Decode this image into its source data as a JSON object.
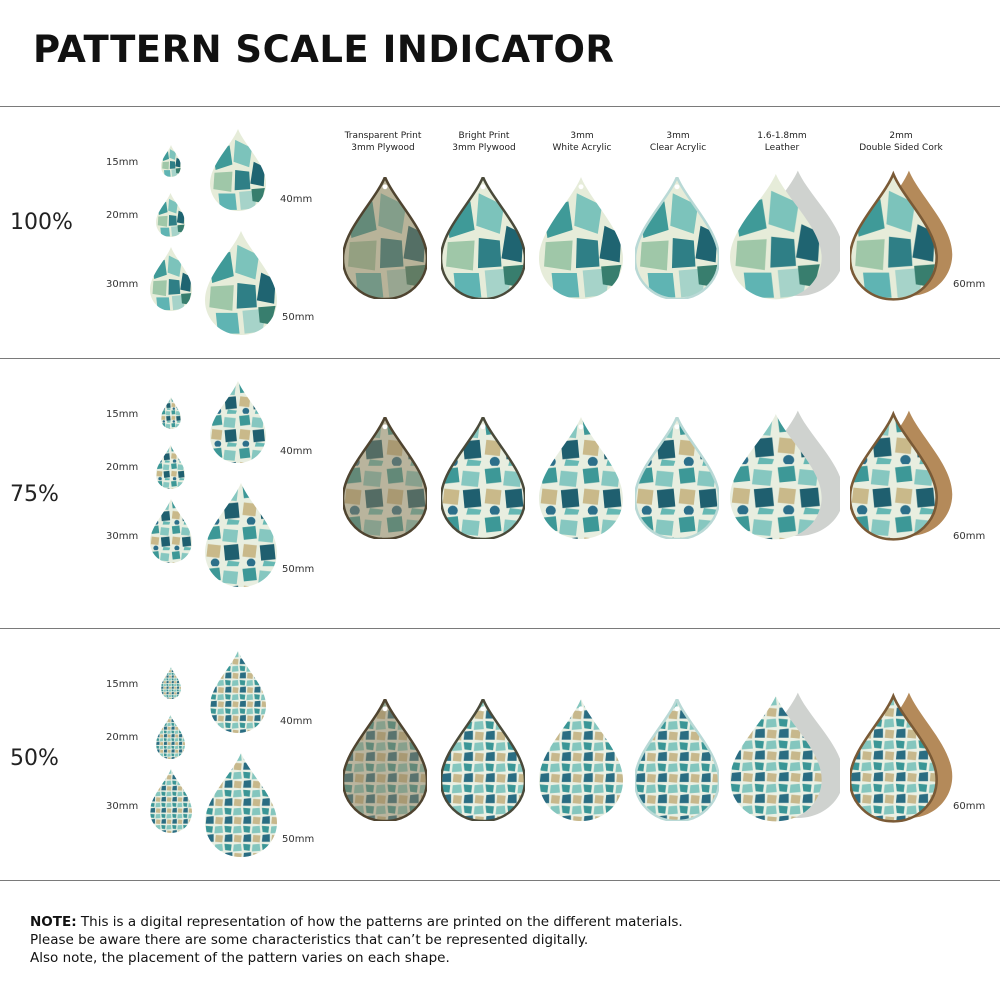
{
  "title": "PATTERN SCALE INDICATOR",
  "materials": [
    {
      "line1": "Transparent Print",
      "line2": "3mm Plywood"
    },
    {
      "line1": "Bright Print",
      "line2": "3mm Plywood"
    },
    {
      "line1": "3mm",
      "line2": "White Acrylic"
    },
    {
      "line1": "3mm",
      "line2": "Clear Acrylic"
    },
    {
      "line1": "1.6-1.8mm",
      "line2": "Leather"
    },
    {
      "line1": "2mm",
      "line2": "Double Sided Cork"
    }
  ],
  "sizes": [
    "15mm",
    "20mm",
    "30mm",
    "40mm",
    "50mm",
    "60mm"
  ],
  "rows": [
    {
      "scale": "100%"
    },
    {
      "scale": "75%"
    },
    {
      "scale": "50%"
    }
  ],
  "colors": {
    "teal_dark": "#1f5f6b",
    "teal": "#3a9a9a",
    "aqua": "#6cc2bf",
    "sage": "#8fb08a",
    "cream": "#eef0e2",
    "wood": "#8a7a5a",
    "cork": "#b48a5a",
    "leather_back": "#cfd2cf"
  },
  "note": {
    "label": "NOTE:",
    "line1": "This is a digital representation of how the patterns are printed on the different materials.",
    "line2": "Please be aware there are some characteristics that can’t be represented digitally.",
    "line3": "Also note, the placement of the pattern varies on each shape."
  }
}
